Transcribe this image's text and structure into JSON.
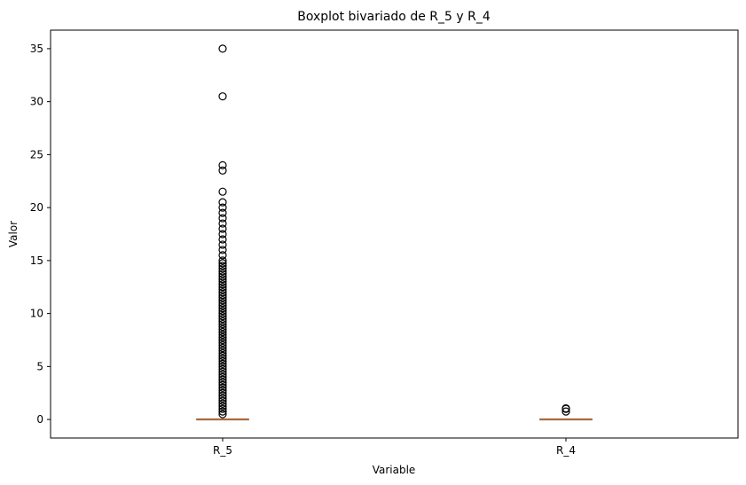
{
  "chart_data": {
    "type": "boxplot",
    "title": "Boxplot bivariado de R_5 y R_4",
    "xlabel": "Variable",
    "ylabel": "Valor",
    "categories": [
      "R_5",
      "R_4"
    ],
    "ylim": [
      -1.75,
      36.75
    ],
    "yticks": [
      0,
      5,
      10,
      15,
      20,
      25,
      30,
      35
    ],
    "grid": false,
    "colors": {
      "median": "#e07b39",
      "box": "#000000",
      "flier": "#000000"
    },
    "boxes": [
      {
        "name": "R_5",
        "q1": 0,
        "median": 0,
        "q3": 0,
        "whisker_low": 0,
        "whisker_high": 0,
        "outliers": [
          0.5,
          0.75,
          1,
          1.25,
          1.5,
          1.75,
          2,
          2.25,
          2.5,
          2.75,
          3,
          3.25,
          3.5,
          3.75,
          4,
          4.25,
          4.5,
          4.75,
          5,
          5.25,
          5.5,
          5.75,
          6,
          6.25,
          6.5,
          6.75,
          7,
          7.25,
          7.5,
          7.75,
          8,
          8.25,
          8.5,
          8.75,
          9,
          9.25,
          9.5,
          9.75,
          10,
          10.25,
          10.5,
          10.75,
          11,
          11.25,
          11.5,
          11.75,
          12,
          12.25,
          12.5,
          12.75,
          13,
          13.25,
          13.5,
          13.75,
          14,
          14.25,
          14.5,
          14.75,
          15,
          15.5,
          16,
          16.5,
          17,
          17.5,
          18,
          18.5,
          19,
          19.5,
          20,
          20.5,
          21.5,
          23.5,
          24,
          30.5,
          35
        ]
      },
      {
        "name": "R_4",
        "q1": 0,
        "median": 0,
        "q3": 0,
        "whisker_low": 0,
        "whisker_high": 0,
        "outliers": [
          0.75,
          1,
          1.05
        ]
      }
    ]
  }
}
